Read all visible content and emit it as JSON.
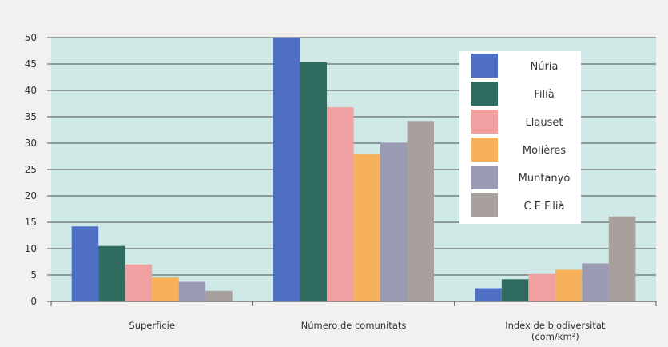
{
  "chart_data": {
    "type": "bar",
    "title": "",
    "xlabel": "",
    "ylabel": "",
    "ylim": [
      0,
      50
    ],
    "yticks": [
      0,
      5,
      10,
      15,
      20,
      25,
      30,
      35,
      40,
      45,
      50
    ],
    "grid": true,
    "legend_position": "top-right",
    "categories": [
      {
        "lines": [
          "Superfície"
        ]
      },
      {
        "lines": [
          "Número de comunitats"
        ]
      },
      {
        "lines": [
          "Índex de biodiversitat",
          "(com/km²)"
        ]
      }
    ],
    "series": [
      {
        "name": "Núria",
        "color": "#4e6fc4",
        "values": [
          14.2,
          50.0,
          2.5
        ]
      },
      {
        "name": "Filià",
        "color": "#2f6b5e",
        "values": [
          10.5,
          45.3,
          4.2
        ]
      },
      {
        "name": "Llauset",
        "color": "#f0a0a0",
        "values": [
          7.0,
          36.8,
          5.2
        ]
      },
      {
        "name": "Molières",
        "color": "#f6b15a",
        "values": [
          4.5,
          28.0,
          6.0
        ]
      },
      {
        "name": "Muntanyó",
        "color": "#9a9bb2",
        "values": [
          3.7,
          30.1,
          7.2
        ]
      },
      {
        "name": "C E Filià",
        "color": "#a8a09c",
        "values": [
          2.0,
          34.2,
          16.1
        ]
      }
    ]
  },
  "colors": {
    "plot_background": "#cfe9e6",
    "page_background": "#f2f1ef",
    "gridline": "#4a4a4a"
  }
}
